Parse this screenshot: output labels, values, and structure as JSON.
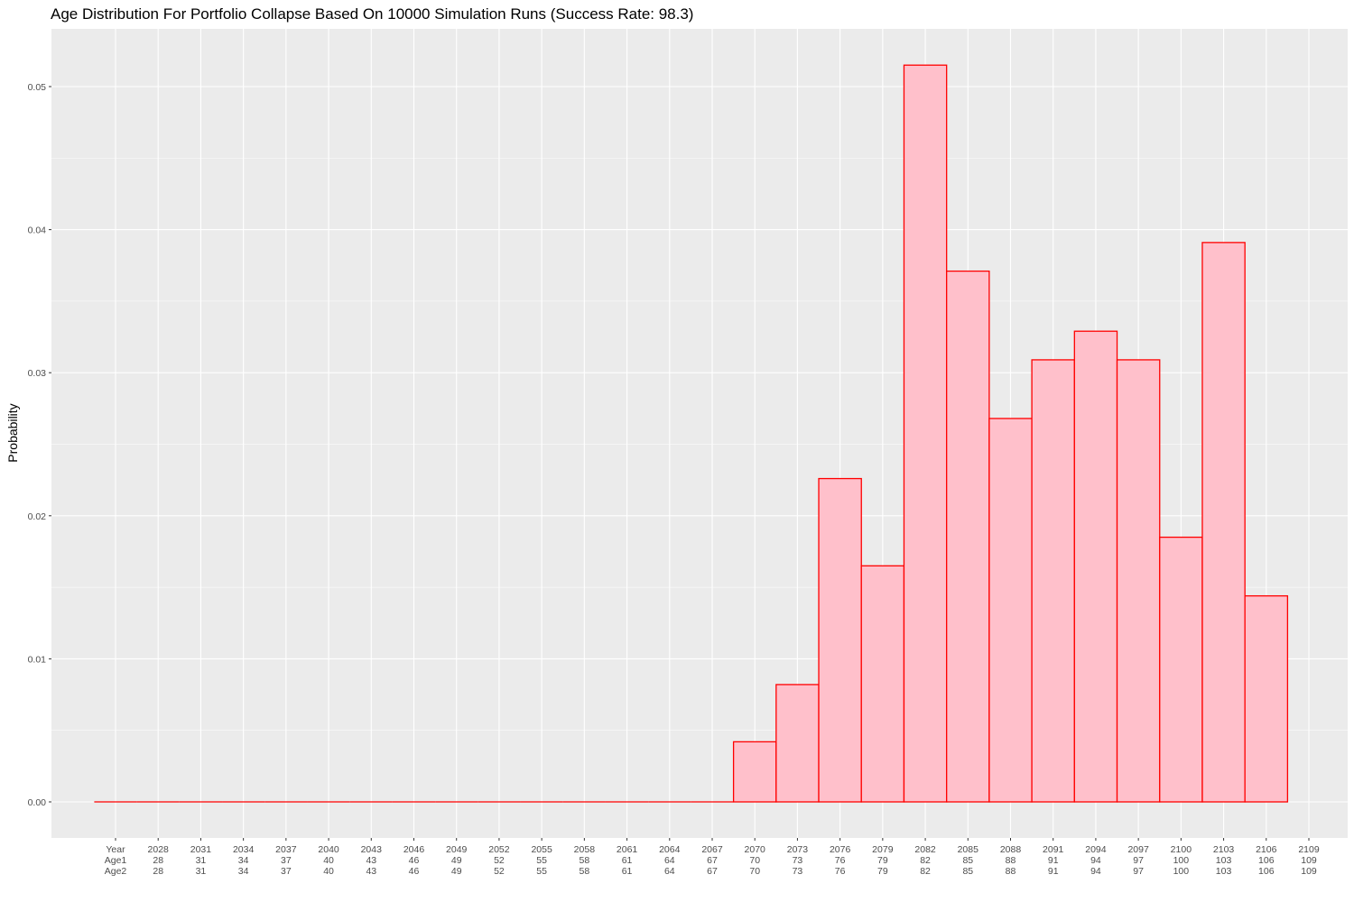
{
  "chart_data": {
    "type": "bar",
    "title": "Age Distribution For Portfolio Collapse Based On 10000 Simulation Runs (Success Rate: 98.3)",
    "xlabel": "",
    "ylabel": "Probability",
    "ylim": [
      0,
      0.052
    ],
    "y_ticks": [
      "0.00",
      "0.01",
      "0.02",
      "0.03",
      "0.04",
      "0.05"
    ],
    "y_tick_values": [
      0,
      0.01,
      0.02,
      0.03,
      0.04,
      0.05
    ],
    "x_range": [
      2025,
      2109
    ],
    "x_tick_positions": [
      2025,
      2028,
      2031,
      2034,
      2037,
      2040,
      2043,
      2046,
      2049,
      2052,
      2055,
      2058,
      2061,
      2064,
      2067,
      2070,
      2073,
      2076,
      2079,
      2082,
      2085,
      2088,
      2091,
      2094,
      2097,
      2100,
      2103,
      2106,
      2109
    ],
    "x_tick_labels": [
      [
        "Year",
        "Age1",
        "Age2"
      ],
      [
        "2028",
        "28",
        "28"
      ],
      [
        "2031",
        "31",
        "31"
      ],
      [
        "2034",
        "34",
        "34"
      ],
      [
        "2037",
        "37",
        "37"
      ],
      [
        "2040",
        "40",
        "40"
      ],
      [
        "2043",
        "43",
        "43"
      ],
      [
        "2046",
        "46",
        "46"
      ],
      [
        "2049",
        "49",
        "49"
      ],
      [
        "2052",
        "52",
        "52"
      ],
      [
        "2055",
        "55",
        "55"
      ],
      [
        "2058",
        "58",
        "58"
      ],
      [
        "2061",
        "61",
        "61"
      ],
      [
        "2064",
        "64",
        "64"
      ],
      [
        "2067",
        "67",
        "67"
      ],
      [
        "2070",
        "70",
        "70"
      ],
      [
        "2073",
        "73",
        "73"
      ],
      [
        "2076",
        "76",
        "76"
      ],
      [
        "2079",
        "79",
        "79"
      ],
      [
        "2082",
        "82",
        "82"
      ],
      [
        "2085",
        "85",
        "85"
      ],
      [
        "2088",
        "88",
        "88"
      ],
      [
        "2091",
        "91",
        "91"
      ],
      [
        "2094",
        "94",
        "94"
      ],
      [
        "2097",
        "97",
        "97"
      ],
      [
        "2100",
        "100",
        "100"
      ],
      [
        "2103",
        "103",
        "103"
      ],
      [
        "2106",
        "106",
        "106"
      ],
      [
        "2109",
        "109",
        "109"
      ]
    ],
    "bin_width": 3,
    "bin_centers": [
      2025,
      2028,
      2031,
      2034,
      2037,
      2040,
      2043,
      2046,
      2049,
      2052,
      2055,
      2058,
      2061,
      2064,
      2067,
      2070,
      2073,
      2076,
      2079,
      2082,
      2085,
      2088,
      2091,
      2094,
      2097,
      2100,
      2103,
      2106
    ],
    "values": [
      0,
      0,
      0,
      0,
      0,
      0,
      0,
      0,
      0,
      0,
      0,
      0,
      0,
      0,
      0,
      0.0042,
      0.0082,
      0.0226,
      0.0165,
      0.0515,
      0.0371,
      0.0268,
      0.0309,
      0.0329,
      0.0309,
      0.0185,
      0.0391,
      0.0144
    ],
    "bar_fill": "#ffc0cb",
    "bar_stroke": "#ff0000",
    "panel_background": "#ebebeb",
    "grid_color": "#ffffff",
    "grid": true,
    "legend": "none"
  }
}
